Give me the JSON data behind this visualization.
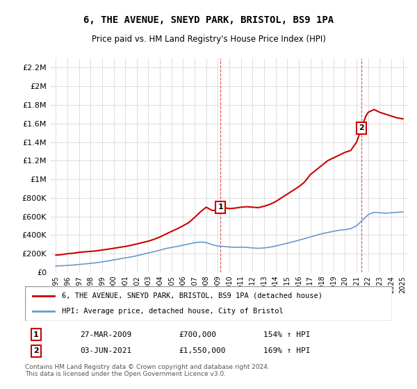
{
  "title": "6, THE AVENUE, SNEYD PARK, BRISTOL, BS9 1PA",
  "subtitle": "Price paid vs. HM Land Registry's House Price Index (HPI)",
  "legend_line1": "6, THE AVENUE, SNEYD PARK, BRISTOL, BS9 1PA (detached house)",
  "legend_line2": "HPI: Average price, detached house, City of Bristol",
  "footer": "Contains HM Land Registry data © Crown copyright and database right 2024.\nThis data is licensed under the Open Government Licence v3.0.",
  "transaction1_label": "1",
  "transaction1_date": "27-MAR-2009",
  "transaction1_price": "£700,000",
  "transaction1_hpi": "154% ↑ HPI",
  "transaction1_year": 2009.23,
  "transaction1_value": 700000,
  "transaction2_label": "2",
  "transaction2_date": "03-JUN-2021",
  "transaction2_price": "£1,550,000",
  "transaction2_hpi": "169% ↑ HPI",
  "transaction2_year": 2021.42,
  "transaction2_value": 1550000,
  "red_color": "#cc0000",
  "blue_color": "#6699cc",
  "marker_box_color": "#cc0000",
  "ylim": [
    0,
    2300000
  ],
  "xlim": [
    1994.5,
    2025.5
  ],
  "yticks": [
    0,
    200000,
    400000,
    600000,
    800000,
    1000000,
    1200000,
    1400000,
    1600000,
    1800000,
    2000000,
    2200000
  ],
  "xticks": [
    1995,
    1996,
    1997,
    1998,
    1999,
    2000,
    2001,
    2002,
    2003,
    2004,
    2005,
    2006,
    2007,
    2008,
    2009,
    2010,
    2011,
    2012,
    2013,
    2014,
    2015,
    2016,
    2017,
    2018,
    2019,
    2020,
    2021,
    2022,
    2023,
    2024,
    2025
  ],
  "red_x": [
    1995.0,
    1995.5,
    1996.0,
    1996.5,
    1997.0,
    1997.5,
    1998.0,
    1998.5,
    1999.0,
    1999.5,
    2000.0,
    2000.5,
    2001.0,
    2001.5,
    2002.0,
    2002.5,
    2003.0,
    2003.5,
    2004.0,
    2004.5,
    2005.0,
    2005.5,
    2006.0,
    2006.5,
    2007.0,
    2007.5,
    2008.0,
    2008.5,
    2009.0,
    2009.23,
    2009.5,
    2010.0,
    2010.5,
    2011.0,
    2011.5,
    2012.0,
    2012.5,
    2013.0,
    2013.5,
    2014.0,
    2014.5,
    2015.0,
    2015.5,
    2016.0,
    2016.5,
    2017.0,
    2017.5,
    2018.0,
    2018.5,
    2019.0,
    2019.5,
    2020.0,
    2020.5,
    2021.0,
    2021.42,
    2021.8,
    2022.0,
    2022.5,
    2023.0,
    2023.5,
    2024.0,
    2024.5,
    2025.0
  ],
  "red_y": [
    185000,
    190000,
    200000,
    205000,
    215000,
    220000,
    225000,
    230000,
    240000,
    248000,
    258000,
    268000,
    278000,
    290000,
    305000,
    320000,
    335000,
    355000,
    380000,
    410000,
    440000,
    468000,
    500000,
    535000,
    590000,
    650000,
    700000,
    665000,
    665000,
    700000,
    695000,
    685000,
    690000,
    700000,
    705000,
    700000,
    695000,
    710000,
    730000,
    760000,
    800000,
    840000,
    880000,
    920000,
    970000,
    1050000,
    1100000,
    1150000,
    1200000,
    1230000,
    1260000,
    1290000,
    1310000,
    1400000,
    1550000,
    1680000,
    1720000,
    1750000,
    1720000,
    1700000,
    1680000,
    1660000,
    1650000
  ],
  "blue_x": [
    1995.0,
    1995.5,
    1996.0,
    1996.5,
    1997.0,
    1997.5,
    1998.0,
    1998.5,
    1999.0,
    1999.5,
    2000.0,
    2000.5,
    2001.0,
    2001.5,
    2002.0,
    2002.5,
    2003.0,
    2003.5,
    2004.0,
    2004.5,
    2005.0,
    2005.5,
    2006.0,
    2006.5,
    2007.0,
    2007.5,
    2008.0,
    2008.5,
    2009.0,
    2009.5,
    2010.0,
    2010.5,
    2011.0,
    2011.5,
    2012.0,
    2012.5,
    2013.0,
    2013.5,
    2014.0,
    2014.5,
    2015.0,
    2015.5,
    2016.0,
    2016.5,
    2017.0,
    2017.5,
    2018.0,
    2018.5,
    2019.0,
    2019.5,
    2020.0,
    2020.5,
    2021.0,
    2021.5,
    2022.0,
    2022.5,
    2023.0,
    2023.5,
    2024.0,
    2024.5,
    2025.0
  ],
  "blue_y": [
    68000,
    70000,
    74000,
    78000,
    84000,
    90000,
    96000,
    103000,
    112000,
    122000,
    133000,
    144000,
    155000,
    165000,
    178000,
    193000,
    208000,
    222000,
    238000,
    255000,
    268000,
    278000,
    292000,
    305000,
    318000,
    325000,
    320000,
    298000,
    282000,
    278000,
    272000,
    268000,
    270000,
    268000,
    262000,
    258000,
    262000,
    270000,
    282000,
    298000,
    312000,
    328000,
    345000,
    362000,
    380000,
    398000,
    415000,
    428000,
    440000,
    452000,
    458000,
    470000,
    500000,
    560000,
    620000,
    645000,
    640000,
    635000,
    640000,
    645000,
    650000
  ]
}
